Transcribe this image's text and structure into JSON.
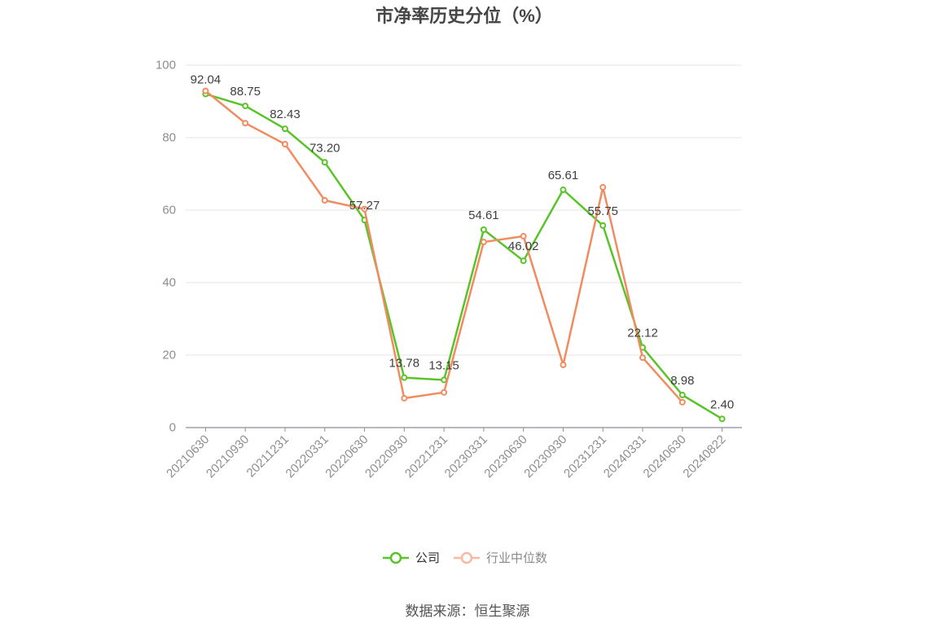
{
  "source": "数据来源：恒生聚源",
  "chart_data": {
    "type": "line",
    "title": "市净率历史分位（%）",
    "categories": [
      "20210630",
      "20210930",
      "20211231",
      "20220331",
      "20220630",
      "20220930",
      "20221231",
      "20230331",
      "20230630",
      "20230930",
      "20231231",
      "20240331",
      "20240630",
      "20240822"
    ],
    "ylim": [
      0,
      100
    ],
    "yticks": [
      0,
      20,
      40,
      60,
      80,
      100
    ],
    "grid": true,
    "legend": "bottom",
    "series": [
      {
        "name": "公司",
        "color": "#5ac329",
        "legend_color": "#5ac329",
        "values": [
          92.04,
          88.75,
          82.43,
          73.2,
          57.27,
          13.78,
          13.15,
          54.61,
          46.02,
          65.61,
          55.75,
          22.12,
          8.98,
          2.4
        ],
        "data_labels": [
          "92.04",
          "88.75",
          "82.43",
          "73.20",
          "57.27",
          "13.78",
          "13.15",
          "54.61",
          "46.02",
          "65.61",
          "55.75",
          "22.12",
          "8.98",
          "2.40"
        ]
      },
      {
        "name": "行业中位数",
        "color": "#f08c5f",
        "legend_color": "#f7b9a0",
        "values": [
          92.9,
          84.0,
          78.2,
          62.7,
          60.3,
          8.1,
          9.7,
          51.2,
          52.8,
          17.3,
          66.3,
          19.3,
          7.0,
          null
        ]
      }
    ]
  }
}
